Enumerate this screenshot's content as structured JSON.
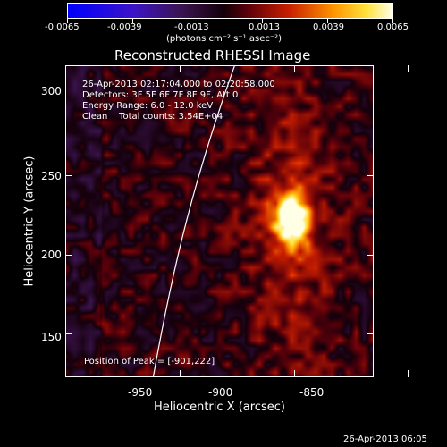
{
  "colorbar": {
    "min": -0.0065,
    "max": 0.0065,
    "tick_labels": [
      "-0.0065",
      "-0.0039",
      "-0.0013",
      "0.0013",
      "0.0039",
      "0.0065"
    ],
    "unit_text": "(photons cm⁻² s⁻¹ asec⁻²)",
    "colormap": "rhessi-diverging"
  },
  "plot": {
    "title": "Reconstructed RHESSI Image",
    "xlabel": "Heliocentric X (arcsec)",
    "ylabel": "Heliocentric Y (arcsec)",
    "xlim": [
      -1000,
      -865
    ],
    "ylim": [
      122,
      320
    ],
    "x_ticks": [
      "-950",
      "-900",
      "-850"
    ],
    "y_ticks": [
      "150",
      "200",
      "250",
      "300"
    ],
    "x_tick_values": [
      -950,
      -900,
      -850
    ],
    "y_tick_values": [
      150,
      200,
      250,
      300
    ]
  },
  "info": {
    "time_range": "26-Apr-2013 02:17:04.000 to 02:20:58.000",
    "detectors": "Detectors: 3F 5F 6F 7F 8F 9F, Att 0",
    "energy": "Energy Range: 6.0 - 12.0 keV",
    "clean": "Clean    Total counts: 3.54E+04",
    "peak": "Position of Peak = [-901,222]"
  },
  "peak": {
    "x": -901,
    "y": 222
  },
  "footer": {
    "timestamp": "26-Apr-2013 06:05"
  }
}
